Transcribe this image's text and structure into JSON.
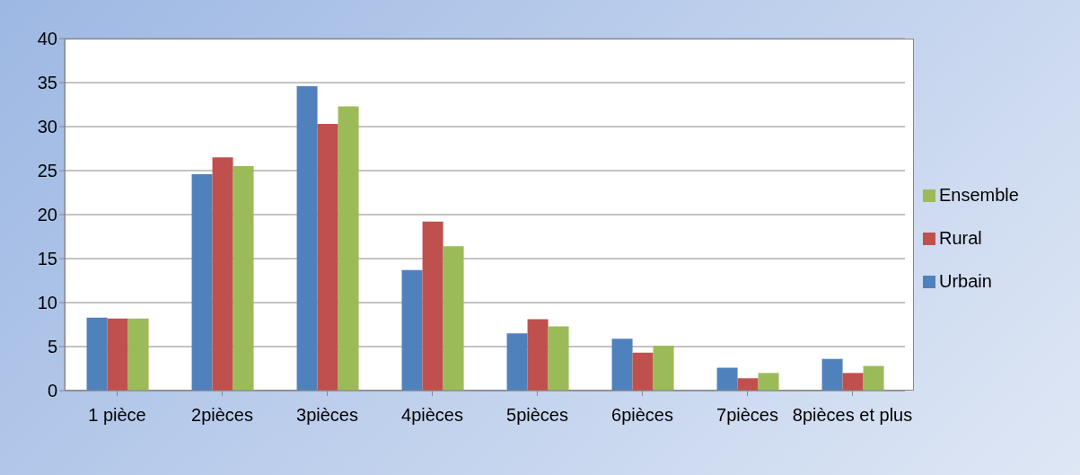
{
  "chart_data": {
    "type": "bar",
    "categories": [
      "1 pièce",
      "2pièces",
      "3pièces",
      "4pièces",
      "5pièces",
      "6pièces",
      "7pièces",
      "8pièces et plus"
    ],
    "series": [
      {
        "name": "Urbain",
        "color": "#4f81bd",
        "values": [
          8.3,
          24.6,
          34.6,
          13.7,
          6.5,
          5.9,
          2.6,
          3.6
        ]
      },
      {
        "name": "Rural",
        "color": "#c0504d",
        "values": [
          8.2,
          26.5,
          30.3,
          19.2,
          8.1,
          4.3,
          1.4,
          2.0
        ]
      },
      {
        "name": "Ensemble",
        "color": "#9bbb59",
        "values": [
          8.2,
          25.5,
          32.3,
          16.4,
          7.3,
          5.1,
          2.0,
          2.8
        ]
      }
    ],
    "ylim": [
      0,
      40
    ],
    "yticks": [
      0,
      5,
      10,
      15,
      20,
      25,
      30,
      35,
      40
    ],
    "grid": "y",
    "legend": "right"
  }
}
